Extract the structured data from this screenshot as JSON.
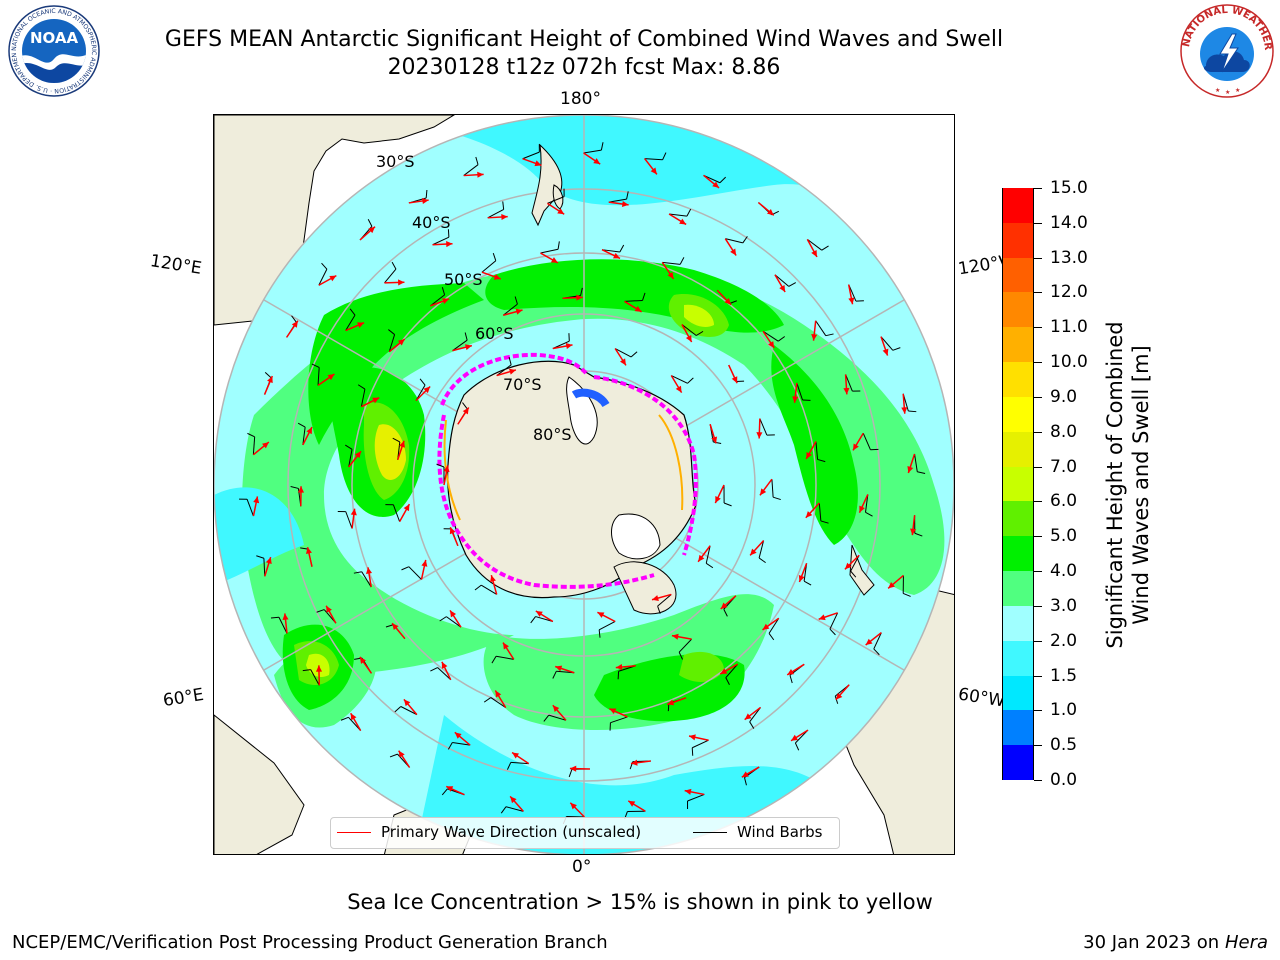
{
  "header": {
    "title_line1": "GEFS MEAN Antarctic Significant Height of Combined Wind Waves and Swell",
    "title_line2": "20230128 t12z 072h fcst   Max: 8.86"
  },
  "logos": {
    "left": {
      "name": "NOAA",
      "text": "NOAA",
      "ring_text": "NATIONAL OCEANIC AND ATMOSPHERIC ADMINISTRATION · U.S. DEPARTMENT OF COMMERCE"
    },
    "right": {
      "name": "National Weather Service",
      "ring_text": "NATIONAL WEATHER SERVICE"
    }
  },
  "map": {
    "projection": "South Polar Stereographic",
    "longitude_labels": {
      "top": "180°",
      "bottom": "0°",
      "upper_left": "120°E",
      "upper_right": "120°W",
      "lower_left": "60°E",
      "lower_right": "60°W"
    },
    "latitude_labels": [
      "30°S",
      "40°S",
      "50°S",
      "60°S",
      "70°S",
      "80°S"
    ],
    "colors": {
      "land": "#efeddc",
      "coast": "#000000",
      "graticule": "#b5b5b5",
      "wave_arrow": "#ff0000",
      "wind_barb": "#000000",
      "sea_ice": "#ff00ff"
    }
  },
  "legend": {
    "wave_label": "Primary Wave Direction (unscaled)",
    "barb_label": "Wind Barbs"
  },
  "colorbar": {
    "title_line1": "Significant Height of Combined",
    "title_line2": "Wind Waves and Swell [m]",
    "ticks": [
      "0.0",
      "0.5",
      "1.0",
      "1.5",
      "2.0",
      "3.0",
      "4.0",
      "5.0",
      "6.0",
      "7.0",
      "8.0",
      "9.0",
      "10.0",
      "11.0",
      "12.0",
      "13.0",
      "14.0",
      "15.0"
    ],
    "colors": [
      "#0000ff",
      "#0080ff",
      "#00e8ff",
      "#40f8ff",
      "#a0ffff",
      "#50ff80",
      "#00f000",
      "#60f000",
      "#c8ff00",
      "#e6f000",
      "#ffff00",
      "#ffe000",
      "#ffb000",
      "#ff8800",
      "#ff6000",
      "#ff3000",
      "#ff0000"
    ]
  },
  "note": "Sea Ice Concentration > 15% is shown in pink to yellow",
  "footer": {
    "left": "NCEP/EMC/Verification Post Processing Product Generation Branch",
    "right_date": "30 Jan 2023 on",
    "right_machine": "Hera"
  }
}
